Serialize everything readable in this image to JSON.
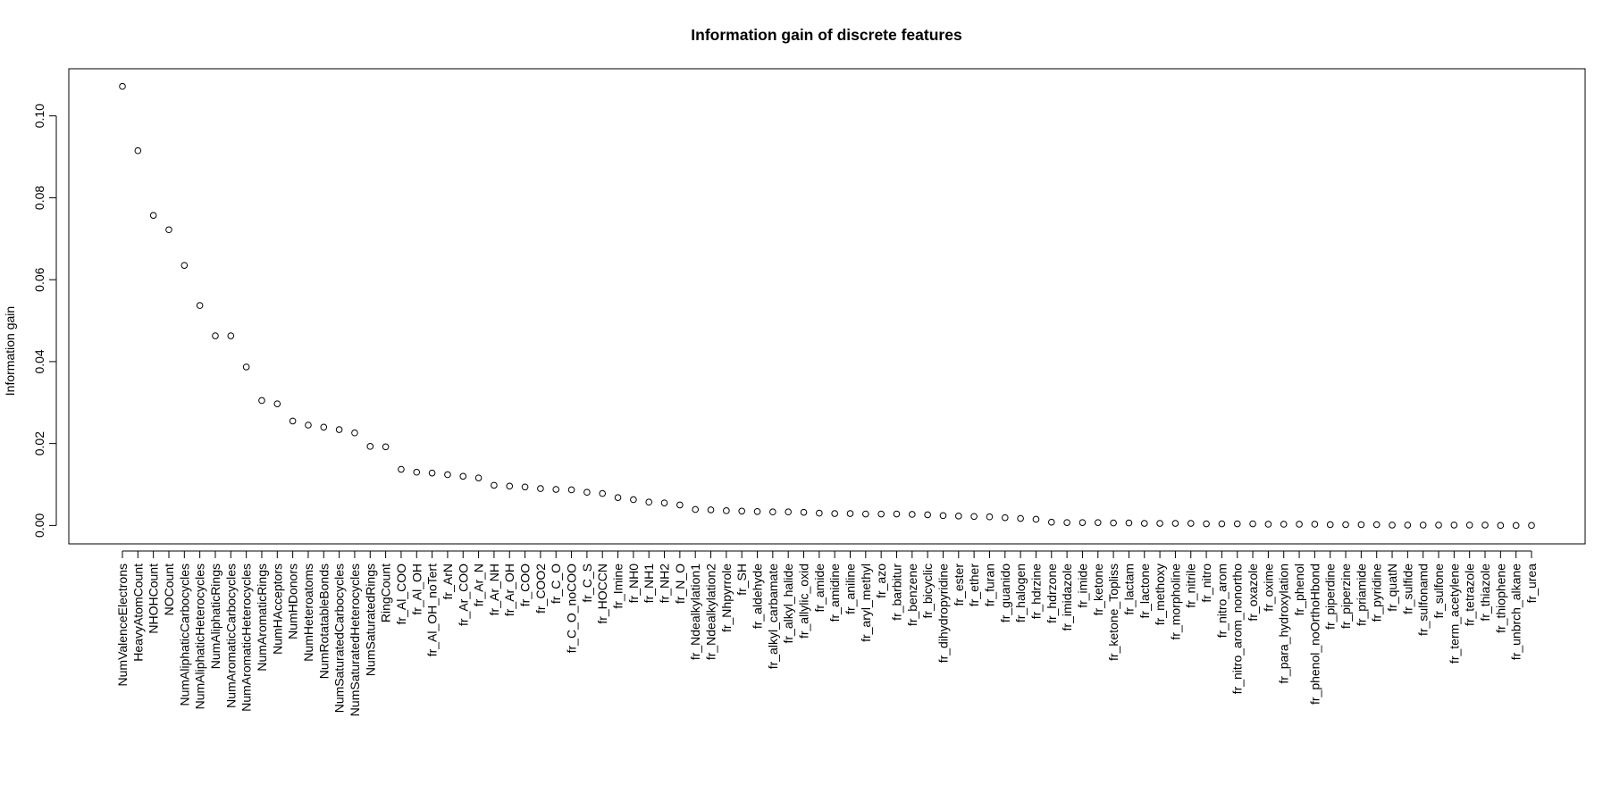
{
  "chart_data": {
    "type": "scatter",
    "title": "Information gain of discrete features",
    "xlabel": "",
    "ylabel": "Information gain",
    "ylim": [
      -0.0045,
      0.1115
    ],
    "yticks": [
      0.0,
      0.02,
      0.04,
      0.06,
      0.08,
      0.1
    ],
    "ytick_labels": [
      "0.00",
      "0.02",
      "0.04",
      "0.06",
      "0.08",
      "0.10"
    ],
    "grid": false,
    "legend": "none",
    "point_style": "open-circle",
    "categories": [
      "NumValenceElectrons",
      "HeavyAtomCount",
      "NHOHCount",
      "NOCount",
      "NumAliphaticCarbocycles",
      "NumAliphaticHeterocycles",
      "NumAliphaticRings",
      "NumAromaticCarbocycles",
      "NumAromaticHeterocycles",
      "NumAromaticRings",
      "NumHAcceptors",
      "NumHDonors",
      "NumHeteroatoms",
      "NumRotatableBonds",
      "NumSaturatedCarbocycles",
      "NumSaturatedHeterocycles",
      "NumSaturatedRings",
      "RingCount",
      "fr_Al_COO",
      "fr_Al_OH",
      "fr_Al_OH_noTert",
      "fr_ArN",
      "fr_Ar_COO",
      "fr_Ar_N",
      "fr_Ar_NH",
      "fr_Ar_OH",
      "fr_COO",
      "fr_COO2",
      "fr_C_O",
      "fr_C_O_noCOO",
      "fr_C_S",
      "fr_HOCCN",
      "fr_Imine",
      "fr_NH0",
      "fr_NH1",
      "fr_NH2",
      "fr_N_O",
      "fr_Ndealkylation1",
      "fr_Ndealkylation2",
      "fr_Nhpyrrole",
      "fr_SH",
      "fr_aldehyde",
      "fr_alkyl_carbamate",
      "fr_alkyl_halide",
      "fr_allylic_oxid",
      "fr_amide",
      "fr_amidine",
      "fr_aniline",
      "fr_aryl_methyl",
      "fr_azo",
      "fr_barbitur",
      "fr_benzene",
      "fr_bicyclic",
      "fr_dihydropyridine",
      "fr_ester",
      "fr_ether",
      "fr_furan",
      "fr_guanido",
      "fr_halogen",
      "fr_hdrzine",
      "fr_hdrzone",
      "fr_imidazole",
      "fr_imide",
      "fr_ketone",
      "fr_ketone_Topliss",
      "fr_lactam",
      "fr_lactone",
      "fr_methoxy",
      "fr_morpholine",
      "fr_nitrile",
      "fr_nitro",
      "fr_nitro_arom",
      "fr_nitro_arom_nonortho",
      "fr_oxazole",
      "fr_oxime",
      "fr_para_hydroxylation",
      "fr_phenol",
      "fr_phenol_noOrthoHbond",
      "fr_piperdine",
      "fr_piperzine",
      "fr_priamide",
      "fr_pyridine",
      "fr_quatN",
      "fr_sulfide",
      "fr_sulfonamd",
      "fr_sulfone",
      "fr_term_acetylene",
      "fr_tetrazole",
      "fr_thiazole",
      "fr_thiophene",
      "fr_unbrch_alkane",
      "fr_urea"
    ],
    "values": [
      0.1072,
      0.0915,
      0.0757,
      0.0722,
      0.0635,
      0.0537,
      0.0463,
      0.0463,
      0.0387,
      0.0305,
      0.0297,
      0.0255,
      0.0245,
      0.024,
      0.0234,
      0.0226,
      0.0193,
      0.0192,
      0.0137,
      0.013,
      0.0128,
      0.0124,
      0.012,
      0.0116,
      0.0098,
      0.0096,
      0.0094,
      0.009,
      0.0088,
      0.0087,
      0.0081,
      0.0078,
      0.0068,
      0.0063,
      0.0057,
      0.0055,
      0.005,
      0.0039,
      0.0038,
      0.0036,
      0.0035,
      0.0034,
      0.0033,
      0.0033,
      0.0032,
      0.003,
      0.0029,
      0.0029,
      0.0028,
      0.0028,
      0.0028,
      0.0027,
      0.0026,
      0.0024,
      0.0023,
      0.0022,
      0.0021,
      0.0019,
      0.0017,
      0.0015,
      0.0008,
      0.0007,
      0.0007,
      0.0007,
      0.0006,
      0.0006,
      0.0005,
      0.0005,
      0.0005,
      0.0005,
      0.0004,
      0.0004,
      0.0004,
      0.0004,
      0.0003,
      0.0003,
      0.0003,
      0.0003,
      0.0002,
      0.0002,
      0.0002,
      0.0002,
      0.0001,
      0.0001,
      0.0001,
      0.0001,
      0.0001,
      0.0001,
      0.0001,
      0.0,
      0.0,
      0.0
    ],
    "colors": {
      "points": "#000000",
      "axis": "#000000",
      "background": "#ffffff"
    }
  }
}
